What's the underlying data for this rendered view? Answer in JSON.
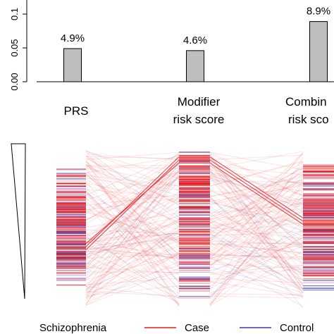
{
  "chart_data": [
    {
      "type": "bar",
      "categories": [
        "PRS",
        "Modifier risk score",
        "Combin risk sco"
      ],
      "values": [
        0.049,
        0.046,
        0.089
      ],
      "data_labels": [
        "4.9%",
        "4.6%",
        "8.9%"
      ],
      "ytick_labels": [
        "0.00",
        "0.05",
        "0.1"
      ],
      "ylim": [
        0,
        0.1
      ],
      "bar_color": "#bebebe",
      "title": "",
      "xlabel": "",
      "ylabel": ""
    },
    {
      "type": "parallel_rank",
      "axes": [
        "PRS",
        "Modifier risk score",
        "Combin risk sco"
      ],
      "case_color": "#e31a1c",
      "control_color": "#3a3aa8",
      "highlighted_case_ranks": [
        {
          "prs": 0.62,
          "modifier": 0.03,
          "combined": 0.18
        },
        {
          "prs": 0.64,
          "modifier": 0.05,
          "combined": 0.2
        },
        {
          "prs": 0.6,
          "modifier": 0.07,
          "combined": 0.22
        }
      ]
    }
  ],
  "categories": {
    "prs": "PRS",
    "modifier_line1": "Modifier",
    "modifier_line2": "risk score",
    "combined_line1": "Combin",
    "combined_line2": "risk sco"
  },
  "legend": {
    "title": "Schizophrenia",
    "case_label": "Case",
    "control_label": "Control"
  }
}
